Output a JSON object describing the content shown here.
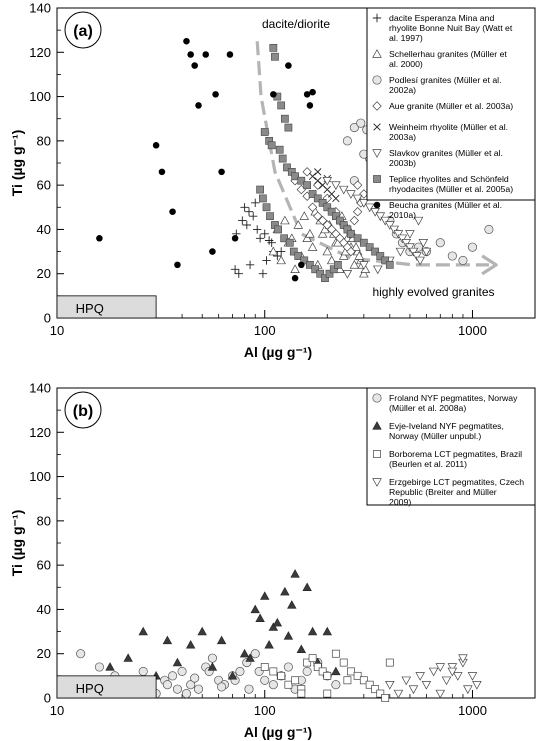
{
  "chart_data": [
    {
      "panel_label": "(a)",
      "type": "scatter",
      "x_scale": "log",
      "xlim": [
        10,
        2000
      ],
      "ylim": [
        0,
        140
      ],
      "xticks": [
        10,
        100,
        1000
      ],
      "yticks": [
        0,
        20,
        40,
        60,
        80,
        100,
        120,
        140
      ],
      "xlabel": "Al (µg g⁻¹)",
      "ylabel": "Ti (µg g⁻¹)",
      "legend_position": "top-right",
      "hpq": {
        "label": "HPQ",
        "x": [
          10,
          30
        ],
        "y": [
          0,
          10
        ]
      },
      "annotations": {
        "dacite": "dacite/diorite",
        "evolved": "highly evolved granites"
      },
      "series": [
        {
          "name": "dacite Esperanza Mina and rhyolite Bonne Nuit Bay (Watt et al. 1997)",
          "marker": "plus",
          "x": [
            80,
            84,
            88,
            78,
            82,
            73,
            92,
            100,
            105,
            95,
            108,
            110,
            120,
            72,
            75,
            85,
            98,
            102,
            115,
            90
          ],
          "y": [
            50,
            48,
            46,
            44,
            42,
            38,
            40,
            38,
            35,
            36,
            34,
            30,
            30,
            22,
            20,
            24,
            20,
            26,
            28,
            52
          ]
        },
        {
          "name": "Schellerhau granites (Müller et al. 2000)",
          "marker": "triangle-up",
          "x": [
            110,
            120,
            130,
            140,
            150,
            160,
            170,
            180,
            190,
            200,
            210,
            220,
            230,
            240,
            250,
            260,
            270,
            280,
            290,
            300,
            115,
            125,
            135,
            145,
            155,
            165,
            175,
            185,
            195,
            205,
            215,
            225,
            235,
            245,
            255,
            265,
            275,
            285,
            295,
            305
          ],
          "y": [
            30,
            26,
            34,
            22,
            28,
            36,
            32,
            24,
            38,
            30,
            26,
            34,
            22,
            28,
            36,
            32,
            24,
            30,
            26,
            20,
            40,
            44,
            36,
            42,
            46,
            38,
            48,
            44,
            40,
            42,
            38,
            34,
            46,
            30,
            40,
            36,
            32,
            28,
            24,
            22
          ]
        },
        {
          "name": "Podlesí granites (Müller et al. 2002a)",
          "marker": "circle",
          "x": [
            250,
            270,
            290,
            310,
            320,
            350,
            380,
            400,
            430,
            460,
            500,
            550,
            600,
            700,
            800,
            900,
            1000,
            1200,
            270,
            300
          ],
          "y": [
            80,
            86,
            88,
            85,
            72,
            66,
            60,
            44,
            38,
            34,
            30,
            32,
            30,
            34,
            28,
            26,
            32,
            40,
            62,
            74
          ]
        },
        {
          "name": "Aue granite (Müller et al. 2003a)",
          "marker": "diamond",
          "x": [
            140,
            150,
            160,
            170,
            180,
            190,
            200,
            210,
            220,
            230,
            240,
            250,
            260,
            270,
            280,
            290,
            300,
            160,
            180,
            200,
            220,
            240,
            260,
            280
          ],
          "y": [
            62,
            58,
            55,
            50,
            46,
            44,
            42,
            40,
            38,
            36,
            34,
            32,
            30,
            44,
            48,
            52,
            56,
            66,
            60,
            54,
            48,
            42,
            38,
            60
          ]
        },
        {
          "name": "Weinheim rhyolite (Müller et al. 2003a)",
          "marker": "cross",
          "x": [
            170,
            180,
            190,
            200,
            210,
            220,
            180,
            200
          ],
          "y": [
            64,
            62,
            60,
            58,
            56,
            54,
            66,
            63
          ]
        },
        {
          "name": "Slavkov granites (Müller et al. 2003b)",
          "marker": "triangle-down",
          "x": [
            200,
            220,
            240,
            260,
            280,
            300,
            320,
            340,
            360,
            380,
            400,
            420,
            440,
            460,
            480,
            500,
            520,
            540,
            560,
            580,
            600,
            250,
            300,
            350,
            400,
            450,
            500,
            550
          ],
          "y": [
            62,
            60,
            58,
            56,
            54,
            52,
            50,
            48,
            46,
            44,
            42,
            40,
            38,
            36,
            34,
            32,
            30,
            28,
            26,
            34,
            30,
            20,
            24,
            22,
            26,
            30,
            38,
            44
          ]
        },
        {
          "name": "Teplice rhyolites and Schönfeld rhyodacites (Müller et al. 2005a)",
          "marker": "square-filled",
          "x": [
            110,
            112,
            115,
            120,
            125,
            130,
            100,
            105,
            108,
            118,
            122,
            128,
            135,
            140,
            150,
            160,
            170,
            180,
            190,
            200,
            210,
            220,
            230,
            240,
            250,
            260,
            280,
            300,
            320,
            340,
            360,
            380,
            400,
            95,
            98,
            102,
            106,
            112,
            116,
            124,
            132,
            138,
            145,
            155,
            165,
            175,
            185,
            195,
            205,
            215,
            225
          ],
          "y": [
            122,
            118,
            100,
            96,
            90,
            86,
            84,
            80,
            78,
            76,
            72,
            68,
            66,
            64,
            62,
            60,
            56,
            54,
            52,
            50,
            48,
            46,
            44,
            42,
            40,
            38,
            36,
            34,
            32,
            30,
            28,
            26,
            24,
            58,
            54,
            50,
            46,
            42,
            40,
            36,
            34,
            30,
            28,
            26,
            24,
            22,
            20,
            18,
            20,
            22,
            24
          ]
        },
        {
          "name": "Beucha granites (Müller et al. 2010a)",
          "marker": "circle-filled",
          "x": [
            16,
            30,
            32,
            36,
            38,
            42,
            44,
            46,
            48,
            52,
            56,
            58,
            62,
            68,
            72,
            110,
            130,
            140,
            150,
            160,
            165,
            170
          ],
          "y": [
            36,
            78,
            66,
            48,
            24,
            125,
            119,
            114,
            96,
            119,
            30,
            101,
            66,
            119,
            36,
            101,
            114,
            18,
            24,
            101,
            96,
            102
          ]
        }
      ]
    },
    {
      "panel_label": "(b)",
      "type": "scatter",
      "x_scale": "log",
      "xlim": [
        10,
        2000
      ],
      "ylim": [
        0,
        140
      ],
      "xticks": [
        10,
        100,
        1000
      ],
      "yticks": [
        0,
        20,
        40,
        60,
        80,
        100,
        120,
        140
      ],
      "xlabel": "Al (µg g⁻¹)",
      "ylabel": "Ti (µg g⁻¹)",
      "legend_position": "top-right",
      "hpq": {
        "label": "HPQ",
        "x": [
          10,
          30
        ],
        "y": [
          0,
          10
        ]
      },
      "series": [
        {
          "name": "Froland NYF pegmatites, Norway (Müller et al. 2008a)",
          "marker": "circle",
          "x": [
            13,
            16,
            19,
            22,
            25,
            28,
            30,
            33,
            36,
            40,
            44,
            48,
            52,
            56,
            60,
            64,
            70,
            76,
            82,
            90,
            100,
            110,
            120,
            130,
            140,
            150,
            160,
            180,
            200,
            220,
            26,
            34,
            38,
            42,
            46,
            54,
            62,
            72,
            84,
            94
          ],
          "y": [
            20,
            14,
            10,
            8,
            6,
            4,
            2,
            8,
            10,
            12,
            6,
            4,
            14,
            18,
            8,
            6,
            10,
            12,
            16,
            20,
            8,
            6,
            10,
            14,
            4,
            8,
            12,
            16,
            10,
            6,
            12,
            6,
            4,
            2,
            9,
            12,
            5,
            8,
            4,
            12
          ]
        },
        {
          "name": "Evje-Iveland NYF pegmatites, Norway (Müller unpubl.)",
          "marker": "triangle-filled",
          "x": [
            18,
            22,
            26,
            30,
            34,
            38,
            44,
            50,
            56,
            62,
            70,
            80,
            90,
            100,
            110,
            120,
            130,
            140,
            150,
            160,
            170,
            180,
            200,
            220,
            95,
            105,
            115,
            135,
            125,
            85
          ],
          "y": [
            14,
            18,
            30,
            10,
            26,
            16,
            24,
            30,
            14,
            26,
            10,
            20,
            40,
            46,
            32,
            10,
            28,
            56,
            22,
            50,
            30,
            16,
            30,
            12,
            36,
            24,
            34,
            42,
            48,
            18
          ]
        },
        {
          "name": "Borborema LCT pegmatites, Brazil (Beurlen et al. 2011)",
          "marker": "square",
          "x": [
            100,
            110,
            120,
            130,
            140,
            150,
            160,
            170,
            180,
            190,
            200,
            220,
            240,
            260,
            280,
            300,
            320,
            340,
            360,
            380,
            400,
            150,
            200,
            250
          ],
          "y": [
            14,
            12,
            10,
            6,
            8,
            4,
            16,
            18,
            14,
            12,
            10,
            20,
            16,
            12,
            10,
            8,
            6,
            4,
            2,
            0,
            16,
            2,
            2,
            8
          ]
        },
        {
          "name": "Erzgebirge LCT pegmatites, Czech Republic (Breiter and Müller 2009)",
          "marker": "triangle-down",
          "x": [
            400,
            440,
            480,
            520,
            560,
            600,
            650,
            700,
            750,
            800,
            850,
            900,
            950,
            1000,
            1050,
            700,
            800,
            900
          ],
          "y": [
            6,
            2,
            8,
            4,
            10,
            6,
            12,
            2,
            8,
            14,
            10,
            16,
            4,
            10,
            6,
            14,
            12,
            18
          ]
        }
      ]
    }
  ]
}
